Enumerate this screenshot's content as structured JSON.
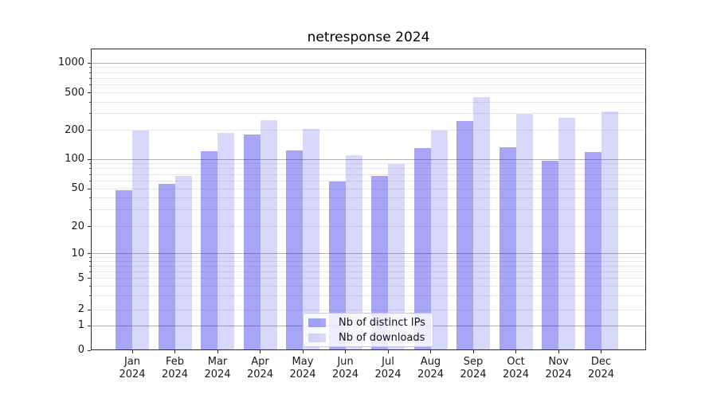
{
  "chart_data": {
    "type": "bar",
    "title": "netresponse 2024",
    "categories": [
      "Jan 2024",
      "Feb 2024",
      "Mar 2024",
      "Apr 2024",
      "May 2024",
      "Jun 2024",
      "Jul 2024",
      "Aug 2024",
      "Sep 2024",
      "Oct 2024",
      "Nov 2024",
      "Dec 2024"
    ],
    "series": [
      {
        "name": "Nb of distinct IPs",
        "color": "rgba(22,22,228,0.38)",
        "values": [
          48,
          56,
          121,
          180,
          123,
          59,
          67,
          131,
          250,
          133,
          97,
          119
        ]
      },
      {
        "name": "Nb of downloads",
        "color": "rgba(22,22,228,0.17)",
        "values": [
          199,
          68,
          189,
          258,
          208,
          110,
          90,
          197,
          455,
          300,
          270,
          315
        ]
      }
    ],
    "yticks": [
      0,
      1,
      2,
      5,
      10,
      20,
      50,
      100,
      200,
      500,
      1000
    ],
    "ylim": [
      0,
      1000
    ],
    "yscale": "symlog",
    "grid": "on",
    "legend_position": "lower center",
    "xlabel": "",
    "ylabel": ""
  },
  "colors": {
    "grid_major": "#b2b2b2",
    "grid_minor": "#e8e8e8",
    "axis_spine": "#2b2b2b",
    "tick": "#333333",
    "text": "#1a1a1a",
    "legend_bg": "rgba(255,255,255,0.8)",
    "legend_border": "#cccccc"
  }
}
